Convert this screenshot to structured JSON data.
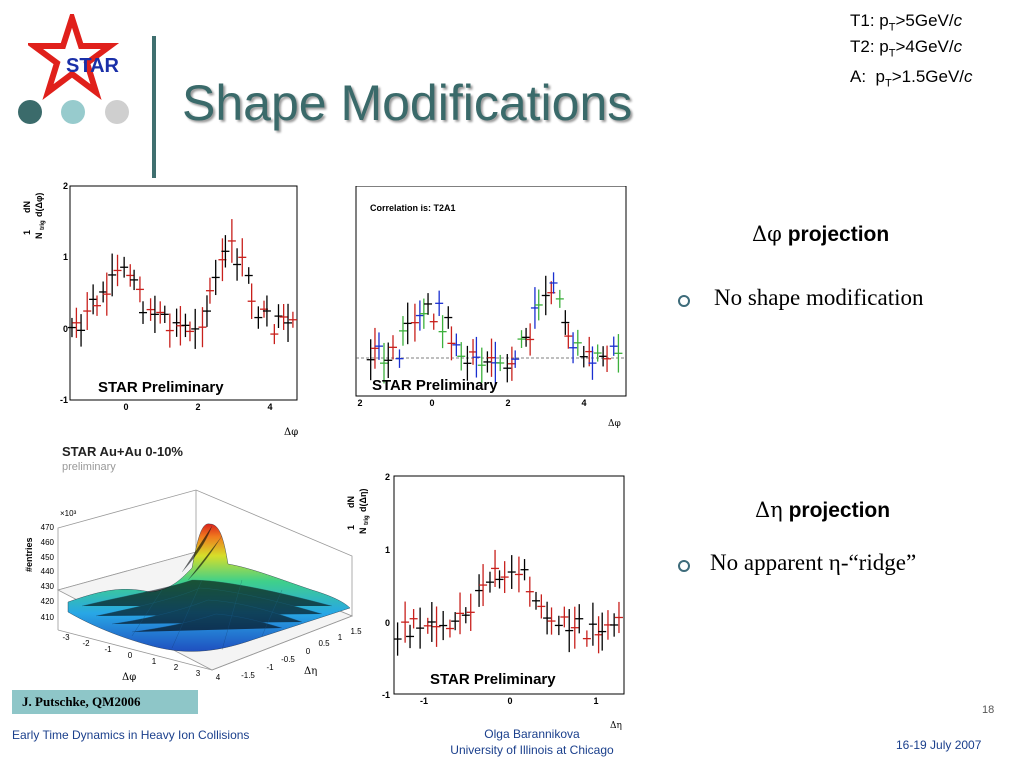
{
  "header": {
    "logo_text": "STAR",
    "title": "Shape Modifications",
    "dot_colors": [
      "#3b6b6b",
      "#97cbcd",
      "#cfcfcf"
    ]
  },
  "trigger_legend": [
    {
      "label": "T1:",
      "sub": "T",
      "value": "p",
      "rest": ">5GeV/",
      "unit": "c"
    },
    {
      "label": "T2:",
      "sub": "T",
      "value": "p",
      "rest": ">4GeV/",
      "unit": "c"
    },
    {
      "label": "A:",
      "sub": "T",
      "value": "p",
      "rest": ">1.5GeV/",
      "unit": "c"
    }
  ],
  "sections": [
    {
      "heading_symbol": "Δφ",
      "heading_text": " projection",
      "bullet": "No shape modification"
    },
    {
      "heading_symbol": "Δη",
      "heading_text": " projection",
      "bullet": "No apparent η-“ridge”"
    }
  ],
  "plots": {
    "dphi_left": {
      "ylabel_num": "1",
      "ylabel_den": "N",
      "ylabel_sub": "trig",
      "ylabel_frac_num": "dN",
      "ylabel_frac_den": "d(Δφ)",
      "yticks": [
        "2",
        "1",
        "0",
        "-1"
      ],
      "xticks": [
        "0",
        "2",
        "4"
      ],
      "xlabel": "Δφ",
      "watermark": "STAR Preliminary"
    },
    "dphi_right": {
      "inner_title": "Correlation is: T2A1",
      "xticks": [
        "2",
        "0",
        "2",
        "4"
      ],
      "xlabel": "Δφ",
      "watermark": "STAR Preliminary"
    },
    "surface3d": {
      "title": "STAR Au+Au 0-10%",
      "subtitle": "preliminary",
      "zlabel": "#entries",
      "zmultiplier": "×10³",
      "zticks": [
        "470",
        "460",
        "450",
        "440",
        "430",
        "420",
        "410"
      ],
      "phi_ticks": [
        "-3",
        "-2",
        "-1",
        "0",
        "1",
        "2",
        "3",
        "4"
      ],
      "phi_label": "Δφ",
      "eta_ticks": [
        "-1.5",
        "-1",
        "-0.5",
        "0",
        "0.5",
        "1",
        "1.5"
      ],
      "eta_label": "Δη"
    },
    "deta": {
      "ylabel_num": "1",
      "ylabel_den": "N",
      "ylabel_sub": "trig",
      "ylabel_frac_num": "dN",
      "ylabel_frac_den": "d(Δη)",
      "yticks": [
        "2",
        "1",
        "0",
        "-1"
      ],
      "xticks": [
        "-1",
        "0",
        "1"
      ],
      "xlabel": "Δη",
      "watermark": "STAR Preliminary"
    }
  },
  "reference": "J. Putschke, QM2006",
  "page_number": "18",
  "footer": {
    "left": "Early Time Dynamics in Heavy Ion Collisions",
    "center_line1": "Olga Barannikova",
    "center_line2": "University of Illinois at Chicago",
    "right": "16-19 July 2007"
  }
}
